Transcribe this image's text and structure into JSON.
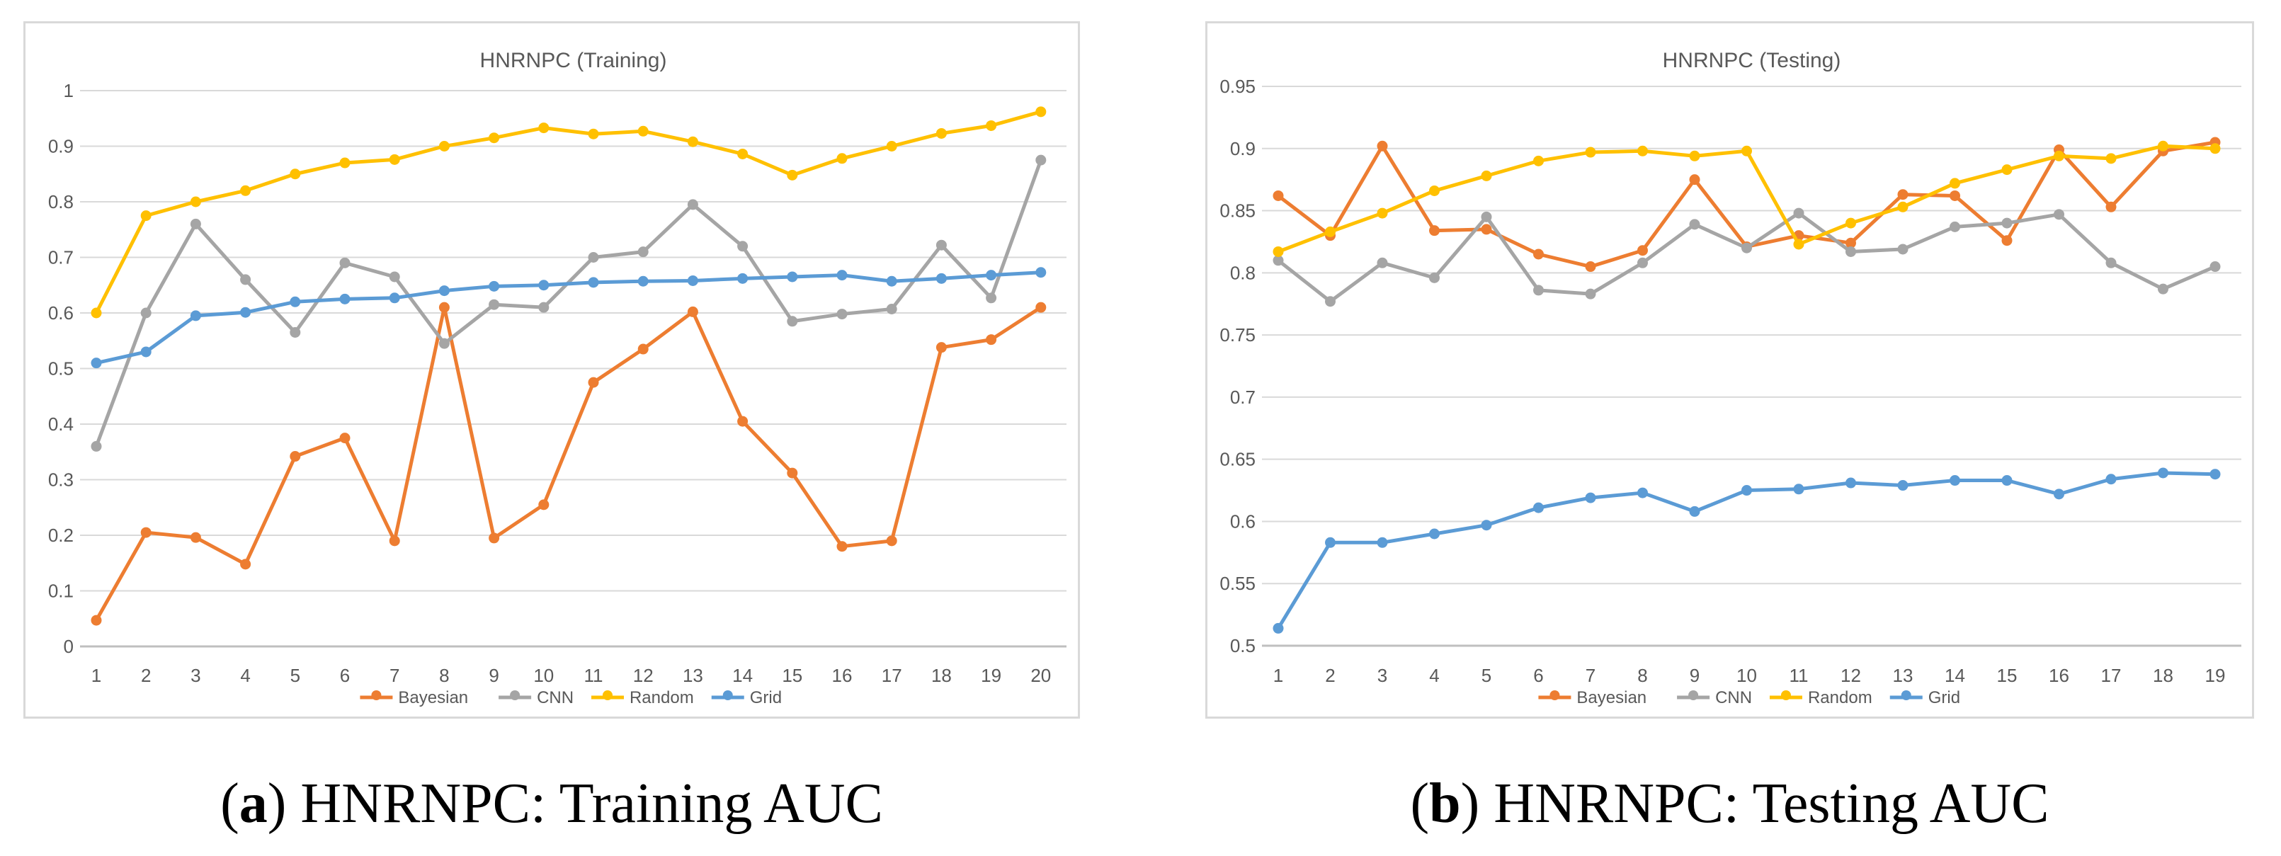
{
  "colors": {
    "bayesian": "#ED7D31",
    "cnn": "#A5A5A5",
    "random": "#FFC000",
    "grid_series": "#5B9BD5",
    "gridline": "#D9D9D9",
    "axis_line": "#BFBFBF",
    "chart_text": "#595959",
    "panel_border": "#D9D9D9",
    "caption_text": "#000000"
  },
  "legend_labels": [
    "Bayesian",
    "CNN",
    "Random",
    "Grid"
  ],
  "chart_data": [
    {
      "type": "line",
      "title": "HNRNPC (Training)",
      "xlabel": "",
      "ylabel": "",
      "grid": true,
      "legend_position": "bottom",
      "ylim": [
        0,
        1
      ],
      "y_tick_labels": [
        "0",
        "0.1",
        "0.2",
        "0.3",
        "0.4",
        "0.5",
        "0.6",
        "0.7",
        "0.8",
        "0.9",
        "1"
      ],
      "x_tick_labels": [
        "1",
        "2",
        "3",
        "4",
        "5",
        "6",
        "7",
        "8",
        "9",
        "10",
        "11",
        "12",
        "13",
        "14",
        "15",
        "16",
        "17",
        "18",
        "19",
        "20"
      ],
      "series": [
        {
          "name": "Bayesian",
          "color_key": "bayesian",
          "values": [
            0.047,
            0.205,
            0.196,
            0.148,
            0.342,
            0.375,
            0.19,
            0.61,
            0.195,
            0.255,
            0.475,
            0.535,
            0.602,
            0.405,
            0.312,
            0.18,
            0.19,
            0.538,
            0.552,
            0.61
          ]
        },
        {
          "name": "CNN",
          "color_key": "cnn",
          "values": [
            0.36,
            0.6,
            0.76,
            0.66,
            0.565,
            0.69,
            0.665,
            0.545,
            0.615,
            0.61,
            0.7,
            0.71,
            0.795,
            0.72,
            0.585,
            0.598,
            0.607,
            0.722,
            0.627,
            0.875
          ]
        },
        {
          "name": "Random",
          "color_key": "random",
          "values": [
            0.6,
            0.775,
            0.8,
            0.82,
            0.85,
            0.87,
            0.876,
            0.9,
            0.915,
            0.933,
            0.922,
            0.927,
            0.908,
            0.886,
            0.848,
            0.878,
            0.9,
            0.923,
            0.937,
            0.962
          ]
        },
        {
          "name": "Grid",
          "color_key": "grid_series",
          "values": [
            0.51,
            0.53,
            0.595,
            0.601,
            0.62,
            0.625,
            0.627,
            0.64,
            0.648,
            0.65,
            0.655,
            0.657,
            0.658,
            0.662,
            0.665,
            0.668,
            0.657,
            0.662,
            0.668,
            0.673
          ]
        }
      ],
      "caption": {
        "open": "(",
        "letter": "a",
        "rest": ") HNRNPC: Training AUC"
      }
    },
    {
      "type": "line",
      "title": "HNRNPC (Testing)",
      "xlabel": "",
      "ylabel": "",
      "grid": true,
      "legend_position": "bottom",
      "ylim": [
        0.5,
        0.95
      ],
      "y_tick_labels": [
        "0.5",
        "0.55",
        "0.6",
        "0.65",
        "0.7",
        "0.75",
        "0.8",
        "0.85",
        "0.9",
        "0.95"
      ],
      "x_tick_labels": [
        "1",
        "2",
        "3",
        "4",
        "5",
        "6",
        "7",
        "8",
        "9",
        "10",
        "11",
        "12",
        "13",
        "14",
        "15",
        "16",
        "17",
        "18",
        "19"
      ],
      "series": [
        {
          "name": "Bayesian",
          "color_key": "bayesian",
          "values": [
            0.862,
            0.83,
            0.902,
            0.834,
            0.835,
            0.815,
            0.805,
            0.818,
            0.875,
            0.821,
            0.83,
            0.824,
            0.863,
            0.862,
            0.826,
            0.899,
            0.853,
            0.898,
            0.905
          ]
        },
        {
          "name": "CNN",
          "color_key": "cnn",
          "values": [
            0.81,
            0.777,
            0.808,
            0.796,
            0.845,
            0.786,
            0.783,
            0.808,
            0.839,
            0.82,
            0.848,
            0.817,
            0.819,
            0.837,
            0.84,
            0.847,
            0.808,
            0.787,
            0.805
          ]
        },
        {
          "name": "Random",
          "color_key": "random",
          "values": [
            0.817,
            0.833,
            0.848,
            0.866,
            0.878,
            0.89,
            0.897,
            0.898,
            0.894,
            0.898,
            0.823,
            0.84,
            0.853,
            0.872,
            0.883,
            0.894,
            0.892,
            0.902,
            0.9
          ]
        },
        {
          "name": "Grid",
          "color_key": "grid_series",
          "values": [
            0.514,
            0.583,
            0.583,
            0.59,
            0.597,
            0.611,
            0.619,
            0.623,
            0.608,
            0.625,
            0.626,
            0.631,
            0.629,
            0.633,
            0.633,
            0.622,
            0.634,
            0.639,
            0.638
          ]
        }
      ],
      "caption": {
        "open": "(",
        "letter": "b",
        "rest": ") HNRNPC: Testing AUC"
      }
    }
  ]
}
